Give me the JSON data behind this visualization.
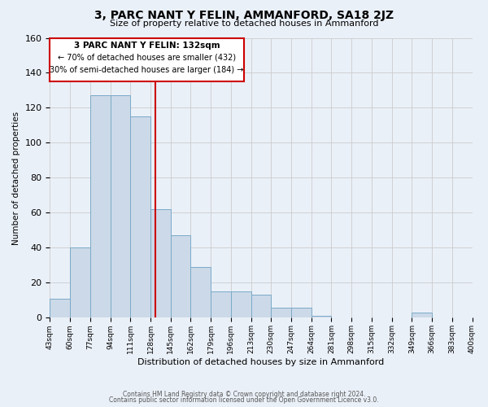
{
  "title": "3, PARC NANT Y FELIN, AMMANFORD, SA18 2JZ",
  "subtitle": "Size of property relative to detached houses in Ammanford",
  "xlabel": "Distribution of detached houses by size in Ammanford",
  "ylabel": "Number of detached properties",
  "bar_edges": [
    43,
    60,
    77,
    94,
    111,
    128,
    145,
    162,
    179,
    196,
    213,
    230,
    247,
    264,
    281,
    298,
    315,
    332,
    349,
    366,
    383
  ],
  "bar_heights": [
    11,
    40,
    127,
    127,
    115,
    62,
    47,
    29,
    15,
    15,
    13,
    6,
    6,
    1,
    0,
    0,
    0,
    0,
    3,
    0,
    0
  ],
  "bar_fill_color": "#ccd9e8",
  "bar_edge_color": "#7aaac8",
  "reference_line_x": 132,
  "reference_line_color": "#cc0000",
  "ylim": [
    0,
    160
  ],
  "yticks": [
    0,
    20,
    40,
    60,
    80,
    100,
    120,
    140,
    160
  ],
  "grid_color": "#cccccc",
  "background_color": "#eaf0f8",
  "annotation_title": "3 PARC NANT Y FELIN: 132sqm",
  "annotation_line1": "← 70% of detached houses are smaller (432)",
  "annotation_line2": "30% of semi-detached houses are larger (184) →",
  "annotation_box_color": "#cc0000",
  "footnote1": "Contains HM Land Registry data © Crown copyright and database right 2024.",
  "footnote2": "Contains public sector information licensed under the Open Government Licence v3.0."
}
